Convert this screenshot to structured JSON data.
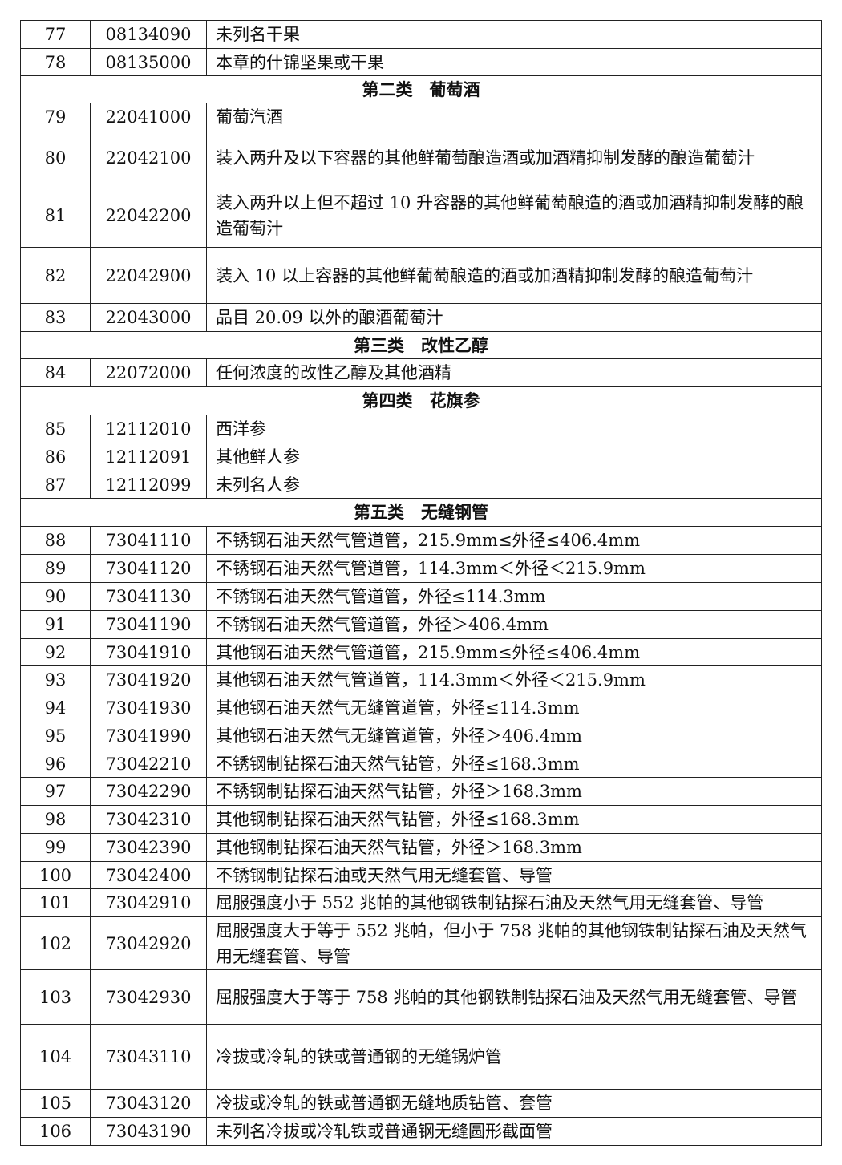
{
  "rows": [
    {
      "no": "77",
      "code": "08134090",
      "desc": "未列名干果"
    },
    {
      "no": "78",
      "code": "08135000",
      "desc": "本章的什锦坚果或干果"
    },
    {
      "header": "第二类　葡萄酒"
    },
    {
      "no": "79",
      "code": "22041000",
      "desc": "葡萄汽酒"
    },
    {
      "no": "80",
      "code": "22042100",
      "desc": "装入两升及以下容器的其他鲜葡萄酿造酒或加酒精抑制发酵的酿造葡萄汁"
    },
    {
      "no": "81",
      "code": "22042200",
      "desc": "装入两升以上但不超过 10 升容器的其他鲜葡萄酿造的酒或加酒精抑制发酵的酿造葡萄汁"
    },
    {
      "no": "82",
      "code": "22042900",
      "desc": "装入 10 以上容器的其他鲜葡萄酿造的酒或加酒精抑制发酵的酿造葡萄汁"
    },
    {
      "no": "83",
      "code": "22043000",
      "desc": "品目 20.09 以外的酿酒葡萄汁"
    },
    {
      "header": "第三类　改性乙醇"
    },
    {
      "no": "84",
      "code": "22072000",
      "desc": "任何浓度的改性乙醇及其他酒精"
    },
    {
      "header": "第四类　花旗参"
    },
    {
      "no": "85",
      "code": "12112010",
      "desc": "西洋参"
    },
    {
      "no": "86",
      "code": "12112091",
      "desc": "其他鲜人参"
    },
    {
      "no": "87",
      "code": "12112099",
      "desc": "未列名人参"
    },
    {
      "header": "第五类　无缝钢管"
    },
    {
      "no": "88",
      "code": "73041110",
      "desc": "不锈钢石油天然气管道管，215.9mm≤外径≤406.4mm"
    },
    {
      "no": "89",
      "code": "73041120",
      "desc": "不锈钢石油天然气管道管，114.3mm＜外径＜215.9mm"
    },
    {
      "no": "90",
      "code": "73041130",
      "desc": "不锈钢石油天然气管道管，外径≤114.3mm"
    },
    {
      "no": "91",
      "code": "73041190",
      "desc": "不锈钢石油天然气管道管，外径＞406.4mm"
    },
    {
      "no": "92",
      "code": "73041910",
      "desc": "其他钢石油天然气管道管，215.9mm≤外径≤406.4mm"
    },
    {
      "no": "93",
      "code": "73041920",
      "desc": "其他钢石油天然气管道管，114.3mm＜外径＜215.9mm"
    },
    {
      "no": "94",
      "code": "73041930",
      "desc": "其他钢石油天然气无缝管道管，外径≤114.3mm"
    },
    {
      "no": "95",
      "code": "73041990",
      "desc": "其他钢石油天然气无缝管道管，外径＞406.4mm"
    },
    {
      "no": "96",
      "code": "73042210",
      "desc": "不锈钢制钻探石油天然气钻管，外径≤168.3mm"
    },
    {
      "no": "97",
      "code": "73042290",
      "desc": "不锈钢制钻探石油天然气钻管，外径＞168.3mm"
    },
    {
      "no": "98",
      "code": "73042310",
      "desc": "其他钢制钻探石油天然气钻管，外径≤168.3mm"
    },
    {
      "no": "99",
      "code": "73042390",
      "desc": "其他钢制钻探石油天然气钻管，外径＞168.3mm"
    },
    {
      "no": "100",
      "code": "73042400",
      "desc": "不锈钢制钻探石油或天然气用无缝套管、导管"
    },
    {
      "no": "101",
      "code": "73042910",
      "desc": "屈服强度小于 552 兆帕的其他钢铁制钻探石油及天然气用无缝套管、导管"
    },
    {
      "no": "102",
      "code": "73042920",
      "desc": "屈服强度大于等于 552 兆帕，但小于 758 兆帕的其他钢铁制钻探石油及天然气用无缝套管、导管"
    },
    {
      "no": "103",
      "code": "73042930",
      "desc": "屈服强度大于等于 758 兆帕的其他钢铁制钻探石油及天然气用无缝套管、导管"
    },
    {
      "no": "104",
      "code": "73043110",
      "desc": "冷拔或冷轧的铁或普通钢的无缝锅炉管"
    },
    {
      "no": "105",
      "code": "73043120",
      "desc": "冷拔或冷轧的铁或普通钢无缝地质钻管、套管"
    },
    {
      "no": "106",
      "code": "73043190",
      "desc": "未列名冷拔或冷轧铁或普通钢无缝圆形截面管"
    }
  ]
}
